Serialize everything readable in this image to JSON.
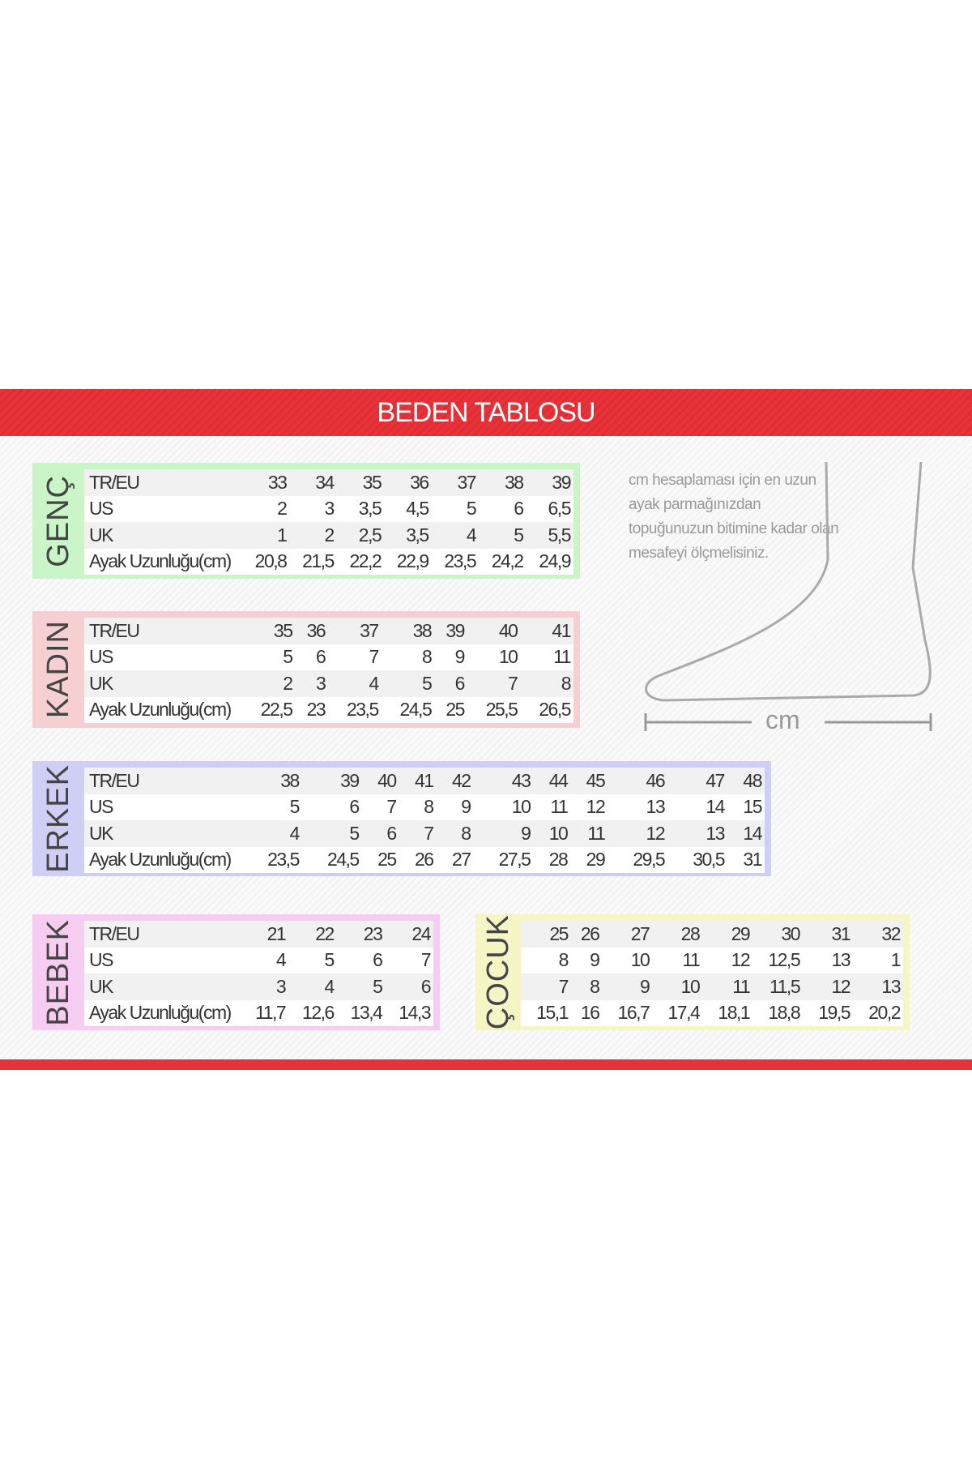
{
  "title": "BEDEN TABLOSU",
  "colors": {
    "banner": "#e8323a",
    "genc": "#c9f5c9",
    "kadin": "#f6cfd3",
    "erkek": "#cfcff5",
    "bebek": "#f6cdf1",
    "cocuk": "#f5f5c6"
  },
  "note": "cm hesaplaması için en uzun ayak parmağınızdan topuğunuzun bitimine kadar olan mesafeyi ölçmelisiniz.",
  "ruler_label": "cm",
  "foot_icon": "foot-outline-icon",
  "tables": [
    {
      "id": "genc",
      "label": "GENÇ",
      "rows": [
        {
          "label": "TR/EU",
          "values": [
            "33",
            "34",
            "35",
            "36",
            "37",
            "38",
            "39"
          ]
        },
        {
          "label": "US",
          "values": [
            "2",
            "3",
            "3,5",
            "4,5",
            "5",
            "6",
            "6,5"
          ]
        },
        {
          "label": "UK",
          "values": [
            "1",
            "2",
            "2,5",
            "3,5",
            "4",
            "5",
            "5,5"
          ]
        },
        {
          "label": "Ayak Uzunluğu(cm)",
          "values": [
            "20,8",
            "21,5",
            "22,2",
            "22,9",
            "23,5",
            "24,2",
            "24,9"
          ]
        }
      ]
    },
    {
      "id": "kadin",
      "label": "KADIN",
      "rows": [
        {
          "label": "TR/EU",
          "values": [
            "35",
            "36",
            "37",
            "38",
            "39",
            "40",
            "41"
          ]
        },
        {
          "label": "US",
          "values": [
            "5",
            "6",
            "7",
            "8",
            "9",
            "10",
            "11"
          ]
        },
        {
          "label": "UK",
          "values": [
            "2",
            "3",
            "4",
            "5",
            "6",
            "7",
            "8"
          ]
        },
        {
          "label": "Ayak Uzunluğu(cm)",
          "values": [
            "22,5",
            "23",
            "23,5",
            "24,5",
            "25",
            "25,5",
            "26,5"
          ]
        }
      ]
    },
    {
      "id": "erkek",
      "label": "ERKEK",
      "rows": [
        {
          "label": "TR/EU",
          "values": [
            "38",
            "39",
            "40",
            "41",
            "42",
            "43",
            "44",
            "45",
            "46",
            "47",
            "48"
          ]
        },
        {
          "label": "US",
          "values": [
            "5",
            "6",
            "7",
            "8",
            "9",
            "10",
            "11",
            "12",
            "13",
            "14",
            "15"
          ]
        },
        {
          "label": "UK",
          "values": [
            "4",
            "5",
            "6",
            "7",
            "8",
            "9",
            "10",
            "11",
            "12",
            "13",
            "14"
          ]
        },
        {
          "label": "Ayak Uzunluğu(cm)",
          "values": [
            "23,5",
            "24,5",
            "25",
            "26",
            "27",
            "27,5",
            "28",
            "29",
            "29,5",
            "30,5",
            "31"
          ]
        }
      ]
    },
    {
      "id": "bebek",
      "label": "BEBEK",
      "rows": [
        {
          "label": "TR/EU",
          "values": [
            "21",
            "22",
            "23",
            "24"
          ]
        },
        {
          "label": "US",
          "values": [
            "4",
            "5",
            "6",
            "7"
          ]
        },
        {
          "label": "UK",
          "values": [
            "3",
            "4",
            "5",
            "6"
          ]
        },
        {
          "label": "Ayak Uzunluğu(cm)",
          "values": [
            "11,7",
            "12,6",
            "13,4",
            "14,3"
          ]
        }
      ]
    },
    {
      "id": "cocuk",
      "label": "ÇOCUK",
      "rows": [
        {
          "values": [
            "25",
            "26",
            "27",
            "28",
            "29",
            "30",
            "31",
            "32"
          ]
        },
        {
          "values": [
            "8",
            "9",
            "10",
            "11",
            "12",
            "12,5",
            "13",
            "1"
          ]
        },
        {
          "values": [
            "7",
            "8",
            "9",
            "10",
            "11",
            "11,5",
            "12",
            "13"
          ]
        },
        {
          "values": [
            "15,1",
            "16",
            "16,7",
            "17,4",
            "18,1",
            "18,8",
            "19,5",
            "20,2"
          ]
        }
      ]
    }
  ]
}
